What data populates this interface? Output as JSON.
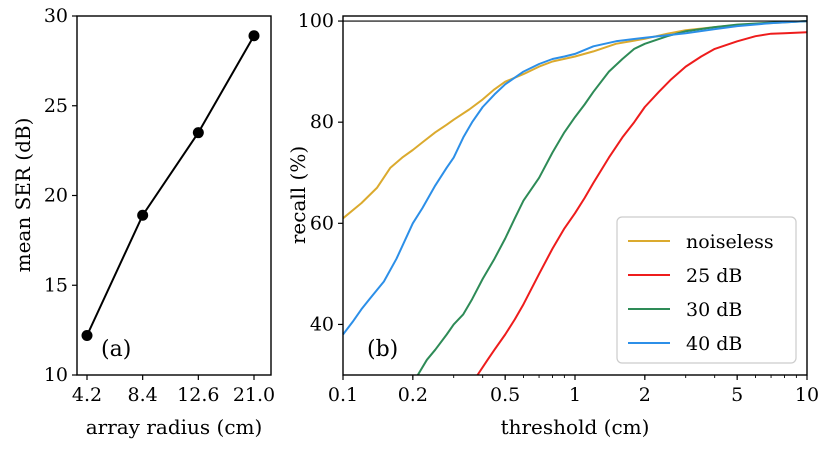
{
  "chart_data": [
    {
      "type": "line",
      "panel_label": "(a)",
      "xlabel": "array radius (cm)",
      "ylabel": "mean SER (dB)",
      "categories": [
        "4.2",
        "8.4",
        "12.6",
        "21.0"
      ],
      "values": [
        12.2,
        18.9,
        23.5,
        28.9
      ],
      "ylim": [
        10,
        30
      ],
      "yticks": [
        "10",
        "15",
        "20",
        "25",
        "30"
      ],
      "marker": "circle",
      "color": "#000000",
      "grid": false
    },
    {
      "type": "line",
      "panel_label": "(b)",
      "xlabel": "threshold (cm)",
      "ylabel": "recall (%)",
      "xscale": "log",
      "xlim": [
        0.1,
        10
      ],
      "ylim": [
        30,
        101
      ],
      "xticks": [
        "0.1",
        "0.2",
        "0.5",
        "1",
        "2",
        "5",
        "10"
      ],
      "yticks": [
        "40",
        "60",
        "80",
        "100"
      ],
      "hline": 100,
      "grid": false,
      "legend_position": "lower-right",
      "series": [
        {
          "name": "noiseless",
          "color": "#dbaa2e",
          "x": [
            0.1,
            0.12,
            0.14,
            0.16,
            0.18,
            0.2,
            0.22,
            0.25,
            0.28,
            0.3,
            0.35,
            0.4,
            0.45,
            0.5,
            0.6,
            0.7,
            0.8,
            1.0,
            1.2,
            1.5,
            2.0,
            2.5,
            3.0,
            4.0,
            5.0,
            7.0,
            10.0
          ],
          "y": [
            61,
            64,
            67,
            71,
            73,
            74.5,
            76,
            78,
            79.5,
            80.5,
            82.5,
            84.5,
            86.5,
            88,
            89.5,
            91,
            92,
            93,
            94,
            95.5,
            96.5,
            97.5,
            98.2,
            98.8,
            99.2,
            99.6,
            100
          ]
        },
        {
          "name": "25 dB",
          "color": "#ee1c1c",
          "x": [
            0.38,
            0.42,
            0.45,
            0.5,
            0.55,
            0.6,
            0.7,
            0.8,
            0.9,
            1.0,
            1.1,
            1.2,
            1.4,
            1.6,
            1.8,
            2.0,
            2.3,
            2.6,
            3.0,
            3.5,
            4.0,
            5.0,
            6.0,
            7.0,
            8.0,
            10.0
          ],
          "y": [
            30,
            33,
            35,
            38,
            41,
            44,
            50,
            55,
            59,
            62,
            65,
            68,
            73,
            77,
            80,
            83,
            86,
            88.5,
            91,
            93,
            94.5,
            96,
            97,
            97.5,
            97.6,
            97.8
          ]
        },
        {
          "name": "30 dB",
          "color": "#2e8b57",
          "x": [
            0.21,
            0.23,
            0.25,
            0.28,
            0.3,
            0.33,
            0.36,
            0.4,
            0.45,
            0.5,
            0.55,
            0.6,
            0.7,
            0.8,
            0.9,
            1.0,
            1.1,
            1.2,
            1.4,
            1.6,
            1.8,
            2.0,
            2.5,
            3.0,
            4.0,
            5.0,
            7.0,
            10.0
          ],
          "y": [
            30,
            33,
            35,
            38,
            40,
            42,
            45,
            49,
            53,
            57,
            61,
            64.5,
            69,
            74,
            78,
            81,
            83.5,
            86,
            90,
            92.5,
            94.5,
            95.5,
            97,
            98,
            98.8,
            99.3,
            99.7,
            100
          ]
        },
        {
          "name": "40 dB",
          "color": "#2c8fe8",
          "x": [
            0.1,
            0.11,
            0.12,
            0.13,
            0.15,
            0.17,
            0.2,
            0.22,
            0.25,
            0.28,
            0.3,
            0.33,
            0.36,
            0.4,
            0.45,
            0.5,
            0.6,
            0.7,
            0.8,
            0.9,
            1.0,
            1.2,
            1.5,
            2.0,
            2.5,
            3.0,
            4.0,
            5.0,
            7.0,
            10.0
          ],
          "y": [
            38,
            40.5,
            43,
            45,
            48.5,
            53,
            60,
            63,
            67.5,
            71,
            73,
            77,
            80,
            83,
            85.5,
            87.5,
            90,
            91.5,
            92.5,
            93,
            93.5,
            95,
            96,
            96.7,
            97.2,
            97.6,
            98.4,
            99,
            99.6,
            100
          ]
        }
      ]
    }
  ]
}
